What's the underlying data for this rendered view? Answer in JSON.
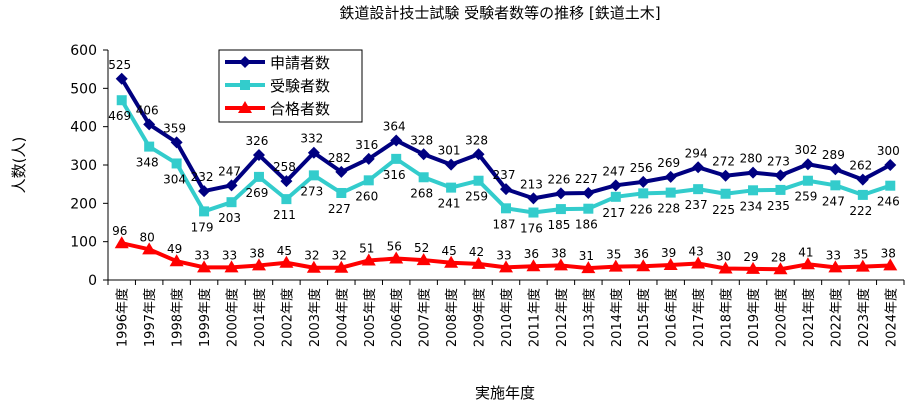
{
  "chart_data": {
    "type": "line",
    "title": "鉄道設計技士試験 受験者数等の推移 [鉄道土木]",
    "xlabel": "実施年度",
    "ylabel": "人数(人)",
    "ylim": [
      0,
      600
    ],
    "yticks": [
      "0",
      "100",
      "200",
      "300",
      "400",
      "500",
      "600"
    ],
    "grid": false,
    "legend_position": "top-left",
    "categories": [
      "1996年度",
      "1997年度",
      "1998年度",
      "1999年度",
      "2000年度",
      "2001年度",
      "2002年度",
      "2003年度",
      "2004年度",
      "2005年度",
      "2006年度",
      "2007年度",
      "2008年度",
      "2009年度",
      "2010年度",
      "2011年度",
      "2012年度",
      "2013年度",
      "2014年度",
      "2015年度",
      "2016年度",
      "2017年度",
      "2018年度",
      "2019年度",
      "2020年度",
      "2021年度",
      "2022年度",
      "2023年度",
      "2024年度"
    ],
    "series": [
      {
        "name": "申請者数",
        "color": "#000080",
        "marker": "diamond",
        "values": [
          525,
          406,
          359,
          232,
          247,
          326,
          258,
          332,
          282,
          316,
          364,
          328,
          301,
          328,
          237,
          213,
          226,
          227,
          247,
          256,
          269,
          294,
          272,
          280,
          273,
          302,
          289,
          262,
          300
        ]
      },
      {
        "name": "受験者数",
        "color": "#33CCCC",
        "marker": "square",
        "values": [
          469,
          348,
          304,
          179,
          203,
          269,
          211,
          273,
          227,
          260,
          316,
          268,
          241,
          259,
          187,
          176,
          185,
          186,
          217,
          226,
          228,
          237,
          225,
          234,
          235,
          259,
          247,
          222,
          246
        ]
      },
      {
        "name": "合格者数",
        "color": "#FF0000",
        "marker": "triangle",
        "values": [
          96,
          80,
          49,
          33,
          33,
          38,
          45,
          32,
          32,
          51,
          56,
          52,
          45,
          42,
          33,
          36,
          38,
          31,
          35,
          36,
          39,
          43,
          30,
          29,
          28,
          41,
          33,
          35,
          38
        ]
      }
    ]
  }
}
